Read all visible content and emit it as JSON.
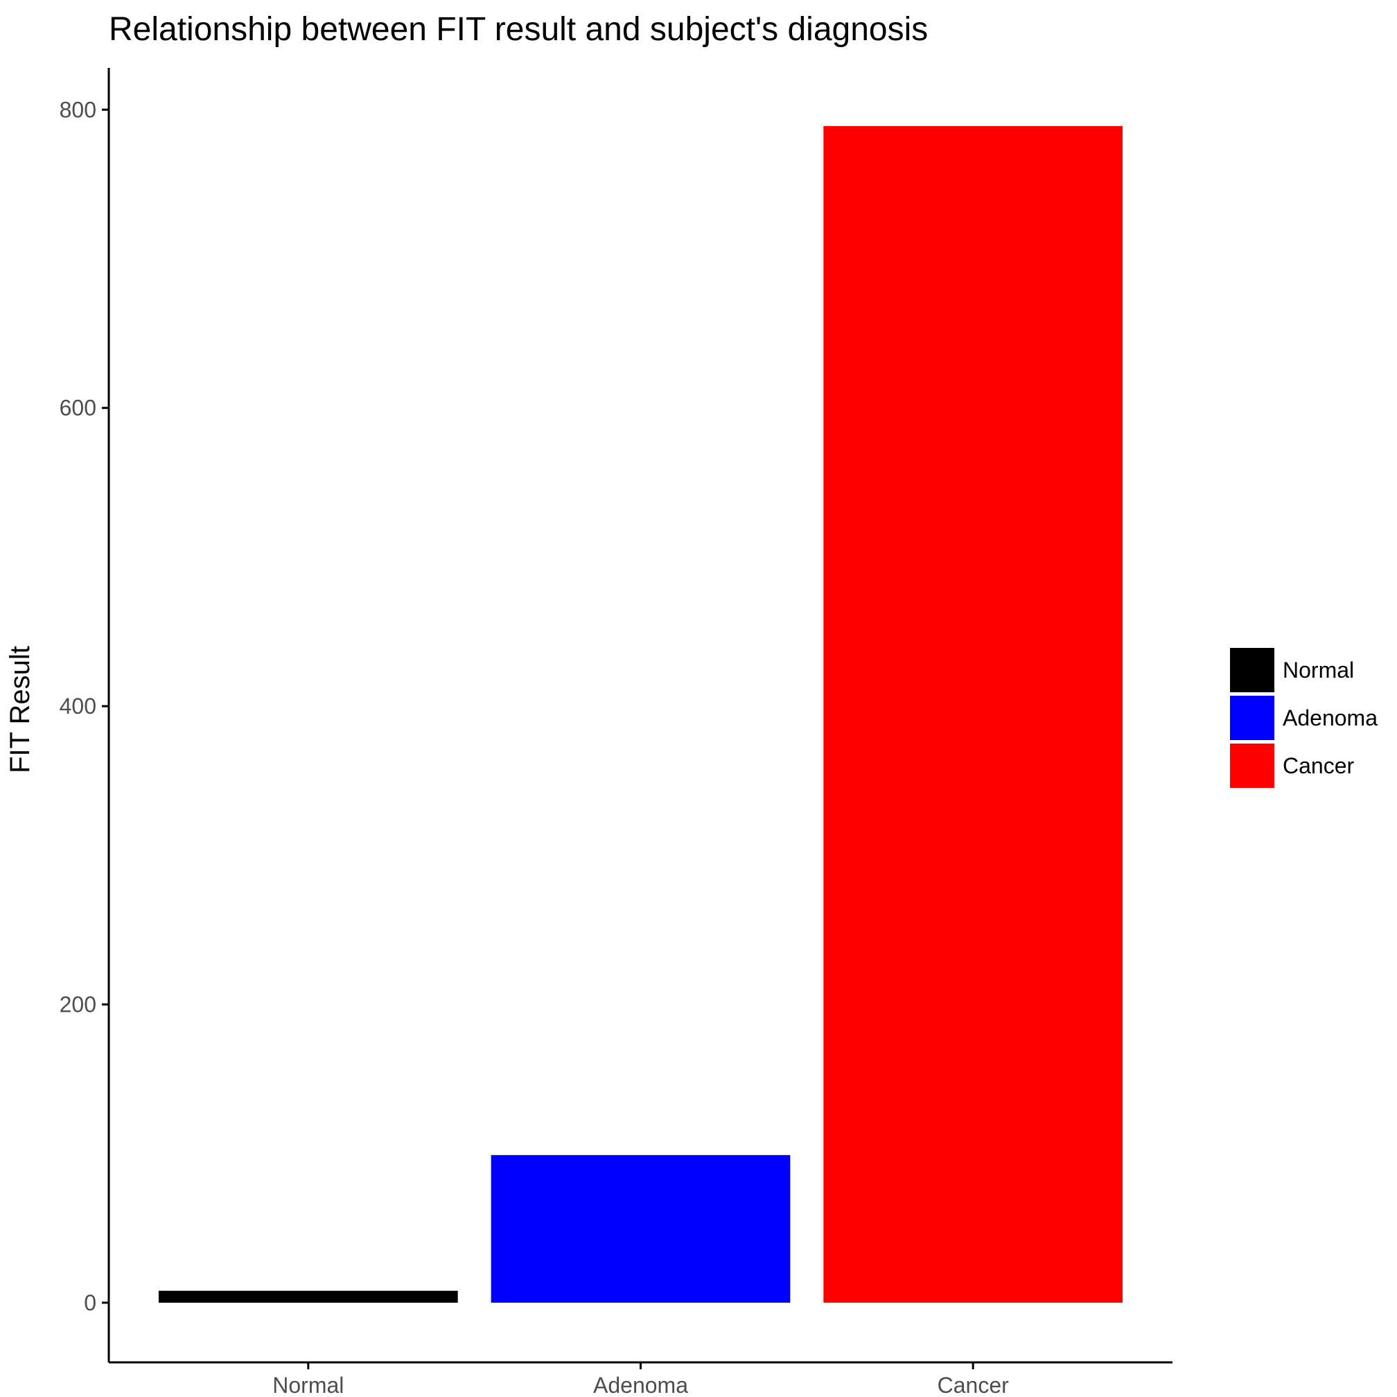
{
  "chart_data": {
    "type": "bar",
    "title": "Relationship between FIT result and subject's diagnosis",
    "xlabel": "",
    "ylabel": "FIT Result",
    "categories": [
      "Normal",
      "Adenoma",
      "Cancer"
    ],
    "values": [
      8,
      99,
      789
    ],
    "colors": [
      "#000000",
      "#0000ff",
      "#ff0000"
    ],
    "ylim": [
      -40,
      828
    ],
    "yticks": [
      0,
      200,
      400,
      600,
      800
    ],
    "grid": false,
    "legend": {
      "position": "right",
      "entries": [
        "Normal",
        "Adenoma",
        "Cancer"
      ]
    }
  }
}
